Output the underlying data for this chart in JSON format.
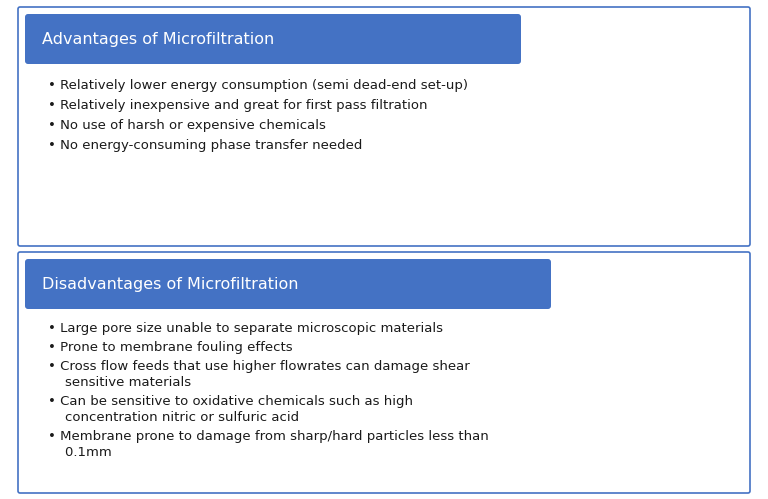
{
  "bg_color": "#ffffff",
  "box_border_color": "#4472c4",
  "header_bg_color": "#4472c4",
  "header_text_color": "#ffffff",
  "body_text_color": "#1a1a1a",
  "advantages_title": "Advantages of Microfiltration",
  "advantages_bullets": [
    "Relatively lower energy consumption (semi dead-end set-up)",
    "Relatively inexpensive and great for first pass filtration",
    "No use of harsh or expensive chemicals",
    "No energy-consuming phase transfer needed"
  ],
  "disadvantages_title": "Disadvantages of Microfiltration",
  "disadvantages_bullets": [
    "Large pore size unable to separate microscopic materials",
    "Prone to membrane fouling effects",
    "Cross flow feeds that use higher flowrates can damage shear\n    sensitive materials",
    "Can be sensitive to oxidative chemicals such as high\n    concentration nitric or sulfuric acid",
    "Membrane prone to damage from sharp/hard particles less than\n    0.1mm"
  ],
  "header_fontsize": 11.5,
  "bullet_fontsize": 9.5,
  "fig_width": 7.68,
  "fig_height": 4.99
}
